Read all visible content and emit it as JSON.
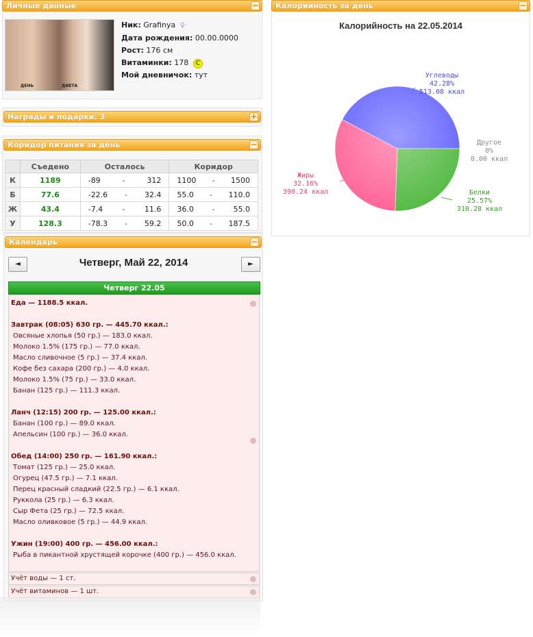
{
  "personal": {
    "header": "Личные данные",
    "photo_captions": [
      "ДЕНЬ",
      "ДИЕТА"
    ],
    "nick_label": "Ник:",
    "nick_value": "Grafinya",
    "birth_label": "Дата рождения:",
    "birth_value": "00.00.0000",
    "height_label": "Рост:",
    "height_value": "176 см",
    "vitamins_label": "Витаминки:",
    "vitamins_value": "178",
    "vitamins_icon": "C",
    "diary_label": "Мой дневничок:",
    "diary_value": "тут"
  },
  "awards": {
    "header": "Награды и подарки: 3"
  },
  "corridor": {
    "header": "Коридор питания за день",
    "columns": [
      "",
      "Съедено",
      "Осталось",
      "Коридор"
    ],
    "rows": [
      {
        "label": "К",
        "eaten": "1189",
        "rem_a": "-89",
        "rem_b": "312",
        "cor_a": "1100",
        "cor_b": "1500"
      },
      {
        "label": "Б",
        "eaten": "77.6",
        "rem_a": "-22.6",
        "rem_b": "32.4",
        "cor_a": "55.0",
        "cor_b": "110.0"
      },
      {
        "label": "Ж",
        "eaten": "43.4",
        "rem_a": "-7.4",
        "rem_b": "11.6",
        "cor_a": "36.0",
        "cor_b": "55.0"
      },
      {
        "label": "У",
        "eaten": "128.3",
        "rem_a": "-78.3",
        "rem_b": "59.2",
        "cor_a": "50.0",
        "cor_b": "187.5"
      }
    ],
    "dash": "-"
  },
  "calendar": {
    "header": "Календарь",
    "prev": "◄",
    "next": "►",
    "title": "Четверг, Май 22, 2014",
    "day_label": "Четверг 22.05",
    "total": "Еда — 1188.5 ккал.",
    "meals": [
      {
        "title": "Завтрак (08:05) 630 гр. — 445.70 ккал.:",
        "items": [
          "Овсяные хлопья (50 гр.) — 183.0 ккал.",
          "Молоко 1.5% (175 гр.) — 77.0 ккал.",
          "Масло сливочное (5 гр.) — 37.4 ккал.",
          "Кофе без сахара (200 гр.) — 4.0 ккал.",
          "Молоко 1.5% (75 гр.) — 33.0 ккал.",
          "Банан (125 гр.) — 111.3 ккал."
        ]
      },
      {
        "title": "Ланч (12:15) 200 гр. — 125.00 ккал.:",
        "items": [
          "Банан (100 гр.) — 89.0 ккал.",
          "Апельсин (100 гр.) — 36.0 ккал."
        ]
      },
      {
        "title": "Обед (14:00) 250 гр. — 161.90 ккал.:",
        "items": [
          "Томат (125 гр.) — 25.0 ккал.",
          "Огурец (47.5 гр.) — 7.1 ккал.",
          "Перец красный сладкий (22.5 гр.) — 6.1 ккал.",
          "Руккола (25 гр.) — 6.3 ккал.",
          "Сыр Фета (25 гр.) — 72.5 ккал.",
          "Масло оливковое (5 гр.) — 44.9 ккал."
        ]
      },
      {
        "title": "Ужин (19:00) 400 гр. — 456.00 ккал.:",
        "items": [
          "Рыба в пикантной хрустящей корочке (400 гр.) — 456.0 ккал."
        ]
      }
    ],
    "water": "Учёт воды — 1 ст.",
    "vitamins": "Учёт витаминов — 1 шт."
  },
  "calories": {
    "header": "Калорийность за день",
    "title": "Калорийность на 22.05.2014"
  },
  "chart_data": {
    "type": "pie",
    "title": "Калорийность на 22.05.2014",
    "series": [
      {
        "name": "Углеводы",
        "percent": "42.28%",
        "value": 513.08,
        "kcal": "513.08 ккал",
        "color": "#6666ff"
      },
      {
        "name": "Белки",
        "percent": "25.57%",
        "value": 310.28,
        "kcal": "310.28 ккал",
        "color": "#55bb44"
      },
      {
        "name": "Жиры",
        "percent": "32.16%",
        "value": 390.24,
        "kcal": "390.24 ккал",
        "color": "#ff6699"
      },
      {
        "name": "Другое",
        "percent": "0%",
        "value": 0,
        "kcal": "0.00 ккал",
        "color": "#999999"
      }
    ]
  }
}
